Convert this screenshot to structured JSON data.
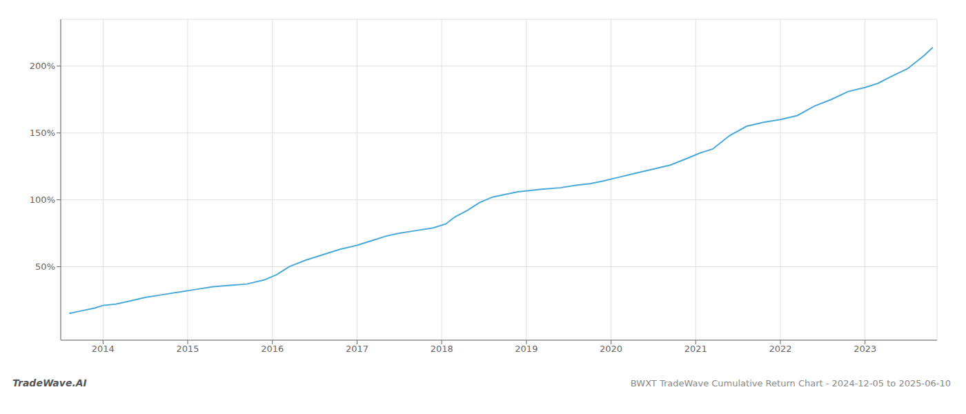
{
  "chart_data": {
    "type": "line",
    "annotations": [
      "TradeWave.AI",
      "BWXT TradeWave Cumulative Return Chart - 2024-12-05 to 2025-06-10"
    ],
    "color": "#4aa8d8",
    "grid": true,
    "xlim": [
      2013.5,
      2023.85
    ],
    "ylim": [
      -5,
      235
    ],
    "xticks": [
      2014,
      2015,
      2016,
      2017,
      2018,
      2019,
      2020,
      2021,
      2022,
      2023
    ],
    "yticks": [
      {
        "value": 50,
        "label": "50%"
      },
      {
        "value": 100,
        "label": "100%"
      },
      {
        "value": 150,
        "label": "150%"
      },
      {
        "value": 200,
        "label": "200%"
      }
    ],
    "x": [
      2013.6,
      2013.75,
      2013.9,
      2014.0,
      2014.15,
      2014.3,
      2014.5,
      2014.7,
      2014.9,
      2015.1,
      2015.3,
      2015.5,
      2015.7,
      2015.9,
      2016.05,
      2016.2,
      2016.4,
      2016.6,
      2016.8,
      2017.0,
      2017.2,
      2017.35,
      2017.5,
      2017.7,
      2017.9,
      2018.05,
      2018.15,
      2018.3,
      2018.45,
      2018.6,
      2018.75,
      2018.9,
      2019.05,
      2019.2,
      2019.4,
      2019.6,
      2019.75,
      2019.9,
      2020.1,
      2020.3,
      2020.5,
      2020.7,
      2020.9,
      2021.05,
      2021.2,
      2021.4,
      2021.6,
      2021.8,
      2022.0,
      2022.2,
      2022.4,
      2022.6,
      2022.8,
      2023.0,
      2023.15,
      2023.3,
      2023.5,
      2023.7,
      2023.8
    ],
    "values": [
      15,
      17,
      19,
      21,
      22,
      24,
      27,
      29,
      31,
      33,
      35,
      36,
      37,
      40,
      44,
      50,
      55,
      59,
      63,
      66,
      70,
      73,
      75,
      77,
      79,
      82,
      87,
      92,
      98,
      102,
      104,
      106,
      107,
      108,
      109,
      111,
      112,
      114,
      117,
      120,
      123,
      126,
      131,
      135,
      138,
      148,
      155,
      158,
      160,
      163,
      170,
      175,
      181,
      184,
      187,
      192,
      198,
      208,
      214
    ]
  }
}
